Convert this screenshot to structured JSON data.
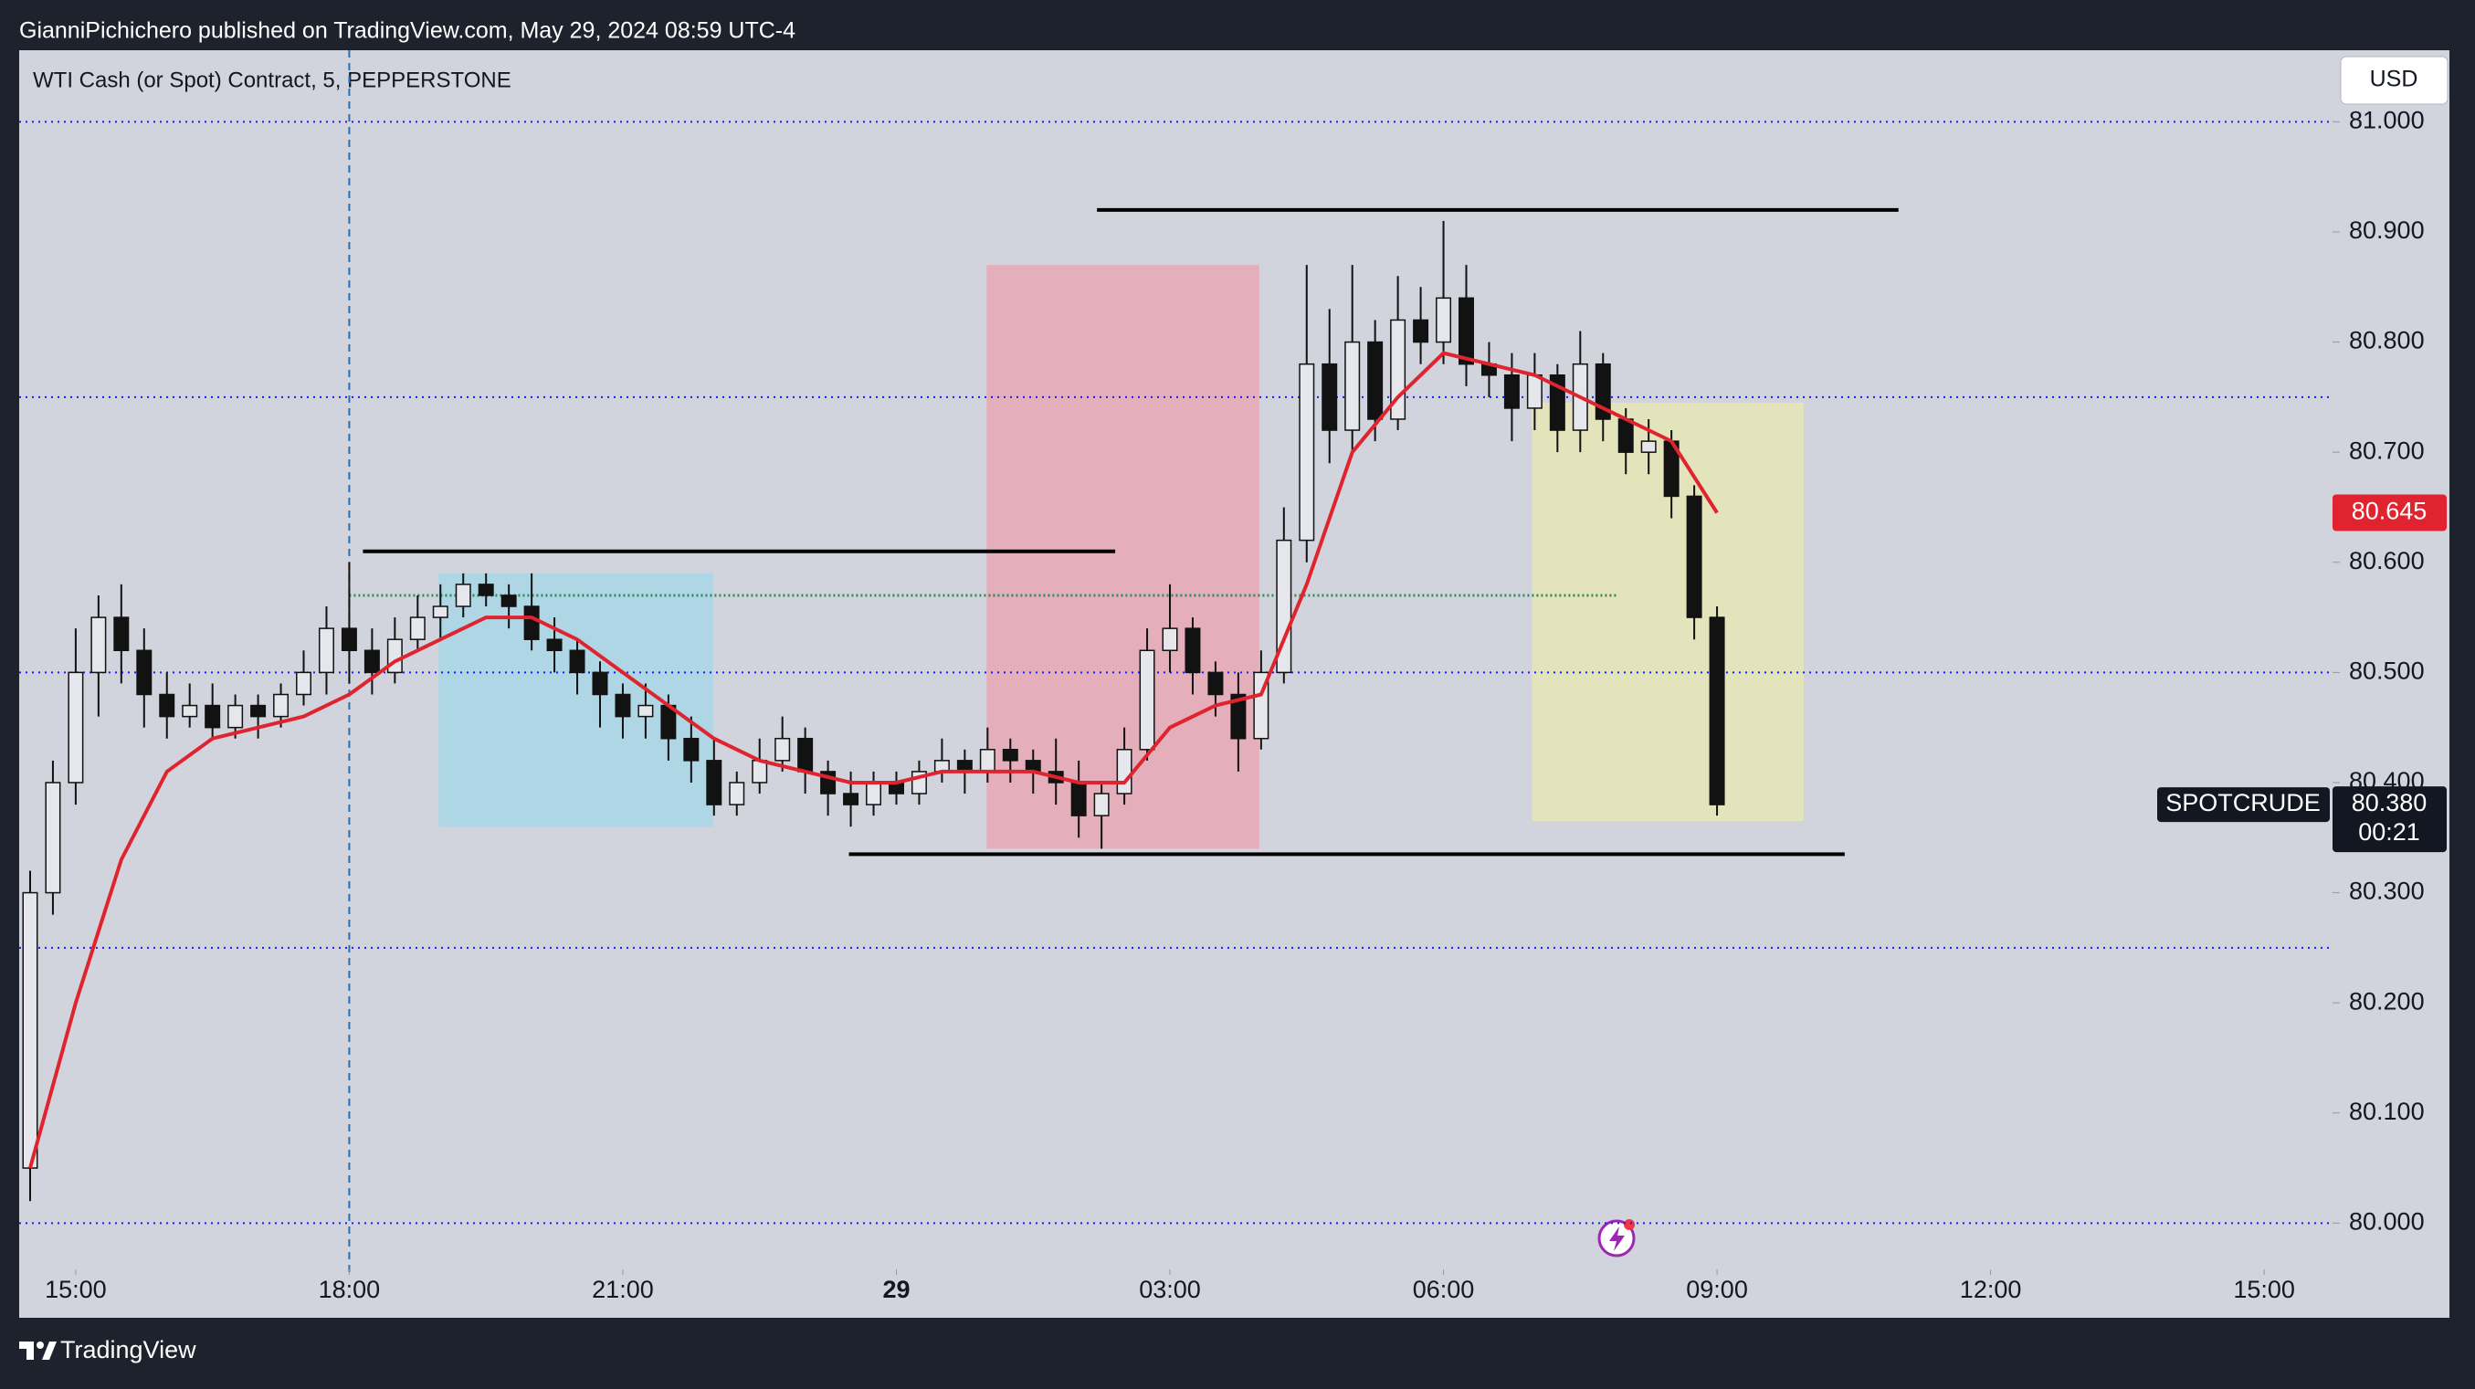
{
  "header": {
    "published": "GianniPichichero published on TradingView.com, May 29, 2024 08:59 UTC-4"
  },
  "footer": {
    "brand": "TradingView"
  },
  "chart_data": {
    "type": "candlestick",
    "title": "WTI Cash (or Spot) Contract, 5, PEPPERSTONE",
    "currency": "USD",
    "xlim": [
      14.38,
      39.75
    ],
    "xticks": [
      {
        "value": 15,
        "label": "15:00"
      },
      {
        "value": 18,
        "label": "18:00"
      },
      {
        "value": 21,
        "label": "21:00"
      },
      {
        "value": 24,
        "label": "29"
      },
      {
        "value": 27,
        "label": "03:00"
      },
      {
        "value": 30,
        "label": "06:00"
      },
      {
        "value": 33,
        "label": "09:00"
      },
      {
        "value": 36,
        "label": "12:00"
      },
      {
        "value": 39,
        "label": "15:00"
      }
    ],
    "ylim": [
      79.958,
      81.065
    ],
    "yticks": [
      {
        "value": 80,
        "label": "80.000"
      },
      {
        "value": 80.1,
        "label": "80.100"
      },
      {
        "value": 80.2,
        "label": "80.200"
      },
      {
        "value": 80.3,
        "label": "80.300"
      },
      {
        "value": 80.4,
        "label": "80.400"
      },
      {
        "value": 80.5,
        "label": "80.500"
      },
      {
        "value": 80.6,
        "label": "80.600"
      },
      {
        "value": 80.7,
        "label": "80.700"
      },
      {
        "value": 80.8,
        "label": "80.800"
      },
      {
        "value": 80.9,
        "label": "80.900"
      },
      {
        "value": 81,
        "label": "81.000"
      }
    ],
    "up_color": "#e6e7ec",
    "down_color": "#121212",
    "x": [
      14.5,
      14.75,
      15,
      15.25,
      15.5,
      15.75,
      16,
      16.25,
      16.5,
      16.75,
      17,
      17.25,
      17.5,
      17.75,
      18,
      18.25,
      18.5,
      18.75,
      19,
      19.25,
      19.5,
      19.75,
      20,
      20.25,
      20.5,
      20.75,
      21,
      21.25,
      21.5,
      21.75,
      22,
      22.25,
      22.5,
      22.75,
      23,
      23.25,
      23.5,
      23.75,
      24,
      24.25,
      24.5,
      24.75,
      25,
      25.25,
      25.5,
      25.75,
      26,
      26.25,
      26.5,
      26.75,
      27,
      27.25,
      27.5,
      27.75,
      28,
      28.25,
      28.5,
      28.75,
      29,
      29.25,
      29.5,
      29.75,
      30,
      30.25,
      30.5,
      30.75,
      31,
      31.25,
      31.5,
      31.75,
      32,
      32.25,
      32.5,
      32.75,
      33
    ],
    "open": [
      80.05,
      80.3,
      80.4,
      80.5,
      80.55,
      80.52,
      80.48,
      80.46,
      80.47,
      80.45,
      80.47,
      80.46,
      80.48,
      80.5,
      80.54,
      80.52,
      80.5,
      80.53,
      80.55,
      80.56,
      80.58,
      80.57,
      80.56,
      80.53,
      80.52,
      80.5,
      80.48,
      80.46,
      80.47,
      80.44,
      80.42,
      80.38,
      80.4,
      80.42,
      80.44,
      80.41,
      80.39,
      80.38,
      80.4,
      80.39,
      80.41,
      80.42,
      80.41,
      80.43,
      80.42,
      80.41,
      80.4,
      80.37,
      80.39,
      80.43,
      80.52,
      80.54,
      80.5,
      80.48,
      80.44,
      80.5,
      80.62,
      80.78,
      80.72,
      80.8,
      80.73,
      80.82,
      80.8,
      80.84,
      80.78,
      80.77,
      80.74,
      80.77,
      80.72,
      80.78,
      80.73,
      80.7,
      80.71,
      80.66,
      80.55
    ],
    "high": [
      80.32,
      80.42,
      80.54,
      80.57,
      80.58,
      80.54,
      80.5,
      80.49,
      80.49,
      80.48,
      80.48,
      80.49,
      80.52,
      80.56,
      80.6,
      80.54,
      80.55,
      80.57,
      80.58,
      80.59,
      80.59,
      80.58,
      80.59,
      80.55,
      80.53,
      80.51,
      80.49,
      80.49,
      80.48,
      80.46,
      80.44,
      80.41,
      80.44,
      80.46,
      80.45,
      80.42,
      80.41,
      80.41,
      80.41,
      80.42,
      80.44,
      80.43,
      80.45,
      80.44,
      80.43,
      80.44,
      80.42,
      80.4,
      80.45,
      80.54,
      80.58,
      80.55,
      80.51,
      80.5,
      80.52,
      80.65,
      80.87,
      80.83,
      80.87,
      80.82,
      80.86,
      80.85,
      80.91,
      80.87,
      80.8,
      80.79,
      80.79,
      80.78,
      80.81,
      80.79,
      80.74,
      80.73,
      80.72,
      80.67,
      80.56
    ],
    "low": [
      80.02,
      80.28,
      80.38,
      80.46,
      80.49,
      80.45,
      80.44,
      80.45,
      80.44,
      80.44,
      80.44,
      80.45,
      80.47,
      80.48,
      80.49,
      80.48,
      80.49,
      80.52,
      80.53,
      80.55,
      80.56,
      80.54,
      80.52,
      80.5,
      80.48,
      80.45,
      80.44,
      80.44,
      80.42,
      80.4,
      80.37,
      80.37,
      80.39,
      80.41,
      80.39,
      80.37,
      80.36,
      80.37,
      80.38,
      80.38,
      80.4,
      80.39,
      80.4,
      80.4,
      80.39,
      80.38,
      80.35,
      80.34,
      80.38,
      80.42,
      80.5,
      80.48,
      80.46,
      80.41,
      80.43,
      80.49,
      80.6,
      80.69,
      80.7,
      80.71,
      80.72,
      80.78,
      80.78,
      80.76,
      80.75,
      80.71,
      80.72,
      80.7,
      80.7,
      80.71,
      80.68,
      80.68,
      80.64,
      80.53,
      80.37
    ],
    "close": [
      80.3,
      80.4,
      80.5,
      80.55,
      80.52,
      80.48,
      80.46,
      80.47,
      80.45,
      80.47,
      80.46,
      80.48,
      80.5,
      80.54,
      80.52,
      80.5,
      80.53,
      80.55,
      80.56,
      80.58,
      80.57,
      80.56,
      80.53,
      80.52,
      80.5,
      80.48,
      80.46,
      80.47,
      80.44,
      80.42,
      80.38,
      80.4,
      80.42,
      80.44,
      80.41,
      80.39,
      80.38,
      80.4,
      80.39,
      80.41,
      80.42,
      80.41,
      80.43,
      80.42,
      80.41,
      80.4,
      80.37,
      80.39,
      80.43,
      80.52,
      80.54,
      80.5,
      80.48,
      80.44,
      80.5,
      80.62,
      80.78,
      80.72,
      80.8,
      80.73,
      80.82,
      80.8,
      80.84,
      80.78,
      80.77,
      80.74,
      80.77,
      80.72,
      80.78,
      80.73,
      80.7,
      80.71,
      80.66,
      80.55,
      80.38
    ],
    "ma": {
      "color": "#e0242f",
      "x": [
        14.5,
        15,
        15.5,
        16,
        16.5,
        17,
        17.5,
        18,
        18.5,
        19,
        19.5,
        20,
        20.5,
        21,
        21.5,
        22,
        22.5,
        23,
        23.5,
        24,
        24.5,
        25,
        25.5,
        26,
        26.5,
        27,
        27.5,
        28,
        28.5,
        29,
        29.5,
        30,
        30.5,
        31,
        31.5,
        32,
        32.5,
        33
      ],
      "values": [
        80.05,
        80.2,
        80.33,
        80.41,
        80.44,
        80.45,
        80.46,
        80.48,
        80.51,
        80.53,
        80.55,
        80.55,
        80.53,
        80.5,
        80.47,
        80.44,
        80.42,
        80.41,
        80.4,
        80.4,
        80.41,
        80.41,
        80.41,
        80.4,
        80.4,
        80.45,
        80.47,
        80.48,
        80.58,
        80.7,
        80.75,
        80.79,
        80.78,
        80.77,
        80.75,
        80.73,
        80.71,
        80.645
      ]
    },
    "hlines": {
      "color": "#1a1aff",
      "values": [
        81,
        80.75,
        80.5,
        80.25,
        80
      ]
    },
    "vline": {
      "color": "#2f6fb0",
      "x": 18
    },
    "zones": [
      {
        "color": "#a9d6e5",
        "x": [
          18.98,
          21.99
        ],
        "y": [
          80.36,
          80.59
        ]
      },
      {
        "color": "#e8a8b4",
        "x": [
          24.99,
          27.98
        ],
        "y": [
          80.34,
          80.87
        ]
      },
      {
        "color": "#e8e6b6",
        "x": [
          30.97,
          33.95
        ],
        "y": [
          80.365,
          80.745
        ]
      }
    ],
    "levels": [
      {
        "color": "#000000",
        "x": [
          26.2,
          34.99
        ],
        "value": 80.92
      },
      {
        "color": "#000000",
        "x": [
          18.15,
          26.4
        ],
        "value": 80.61
      },
      {
        "color": "#000000",
        "x": [
          23.48,
          34.4
        ],
        "value": 80.335
      },
      {
        "color": "#2e8b57",
        "x": [
          18.0,
          31.9
        ],
        "value": 80.57
      }
    ],
    "price_labels": [
      {
        "value": 80.645,
        "label": "80.645",
        "color": "#e0242f"
      },
      {
        "value": 80.38,
        "label": "80.380",
        "color": "#131722",
        "symbol": "SPOTCRUDE",
        "countdown": "00:21"
      }
    ]
  }
}
